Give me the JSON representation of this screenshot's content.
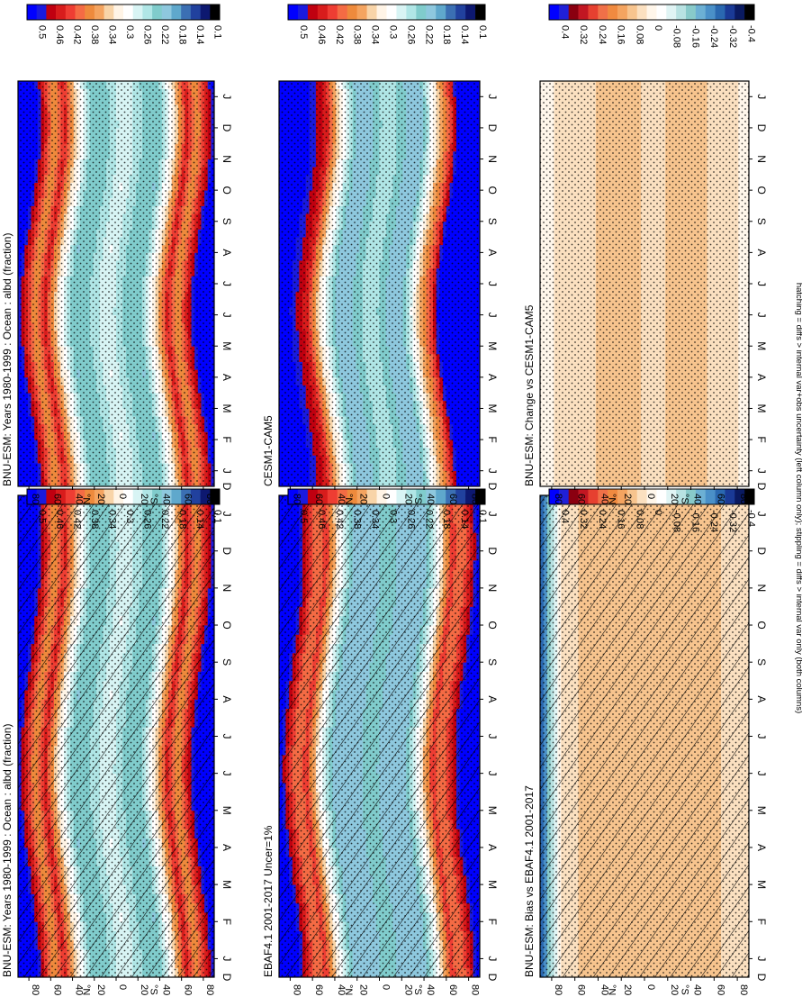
{
  "figure": {
    "footnote": "hatching = diffs > internal var+obs uncertainty (left column only); stippling = diffs > internal var only (both columns)"
  },
  "colors": {
    "abs_palette": [
      "#0000ff",
      "#1a1adf",
      "#c00010",
      "#d81c1c",
      "#ee3d33",
      "#f46b44",
      "#ee8a3c",
      "#f4a460",
      "#f8d4a8",
      "#fff4e6",
      "#ffffff",
      "#d8f4f4",
      "#b0e6e6",
      "#80cccc",
      "#8ec8de",
      "#5fa8cc",
      "#3b6fb3",
      "#21419e",
      "#0d1870",
      "#000000"
    ],
    "diff_palette": [
      "#0000ff",
      "#2020d8",
      "#8a0010",
      "#c21622",
      "#e64030",
      "#f07048",
      "#f08a40",
      "#f4a460",
      "#f7c48e",
      "#fbe0c0",
      "#fff6ea",
      "#ffffff",
      "#e0f4f4",
      "#b8e2e2",
      "#88caca",
      "#6cb0d4",
      "#4a90c8",
      "#2a68b0",
      "#1a3a96",
      "#0a1a60",
      "#000000"
    ]
  },
  "chart_data": [
    {
      "type": "heatmap",
      "title": "BNU-ESM: Years 1980-1999 : Ocean : albd (fraction)",
      "x_ticks": [
        "J",
        "F",
        "M",
        "A",
        "M",
        "J",
        "J",
        "A",
        "S",
        "O",
        "N",
        "D",
        "J"
      ],
      "x_extra_tick": "D",
      "y_ticks": [
        "80",
        "60",
        "40",
        "20",
        "0",
        "20",
        "40",
        "60",
        "80"
      ],
      "y_hemisphere_labels": [
        "°N",
        "°S"
      ],
      "hatching": true,
      "stippling": true,
      "colorbar": {
        "ticks": [
          "0.5",
          "0.46",
          "0.42",
          "0.38",
          "0.34",
          "0.3",
          "0.26",
          "0.22",
          "0.18",
          "0.14",
          "0.1"
        ],
        "range": [
          0.1,
          0.5
        ]
      },
      "field": {
        "lat_nodes": [
          -90,
          -65,
          -56,
          -45,
          -30,
          -15,
          0,
          15,
          30,
          45,
          56,
          65,
          90
        ],
        "values": [
          0.55,
          0.36,
          0.43,
          0.32,
          0.22,
          0.24,
          0.28,
          0.24,
          0.22,
          0.32,
          0.43,
          0.36,
          0.55
        ],
        "seasonal_shift_deg": 9
      }
    },
    {
      "type": "heatmap",
      "title": "BNU-ESM: Years 1980-1999 : Ocean : albd (fraction)",
      "x_ticks": [
        "J",
        "F",
        "M",
        "A",
        "M",
        "J",
        "J",
        "A",
        "S",
        "O",
        "N",
        "D",
        "J"
      ],
      "x_extra_tick": "D",
      "y_ticks": [
        "80",
        "60",
        "40",
        "20",
        "0",
        "20",
        "40",
        "60",
        "80"
      ],
      "y_hemisphere_labels": [
        "°N",
        "°S"
      ],
      "hatching": false,
      "stippling": true,
      "colorbar": {
        "ticks": [
          "0.5",
          "0.46",
          "0.42",
          "0.38",
          "0.34",
          "0.3",
          "0.26",
          "0.22",
          "0.18",
          "0.14",
          "0.1"
        ],
        "range": [
          0.1,
          0.5
        ]
      },
      "field": {
        "lat_nodes": [
          -90,
          -65,
          -56,
          -45,
          -30,
          -15,
          0,
          15,
          30,
          45,
          56,
          65,
          90
        ],
        "values": [
          0.55,
          0.36,
          0.43,
          0.32,
          0.22,
          0.24,
          0.28,
          0.24,
          0.22,
          0.32,
          0.43,
          0.36,
          0.55
        ],
        "seasonal_shift_deg": 9
      }
    },
    {
      "type": "heatmap",
      "title": "EBAF4.1 2001-2017 Uncer=1%",
      "x_ticks": [
        "J",
        "F",
        "M",
        "A",
        "M",
        "J",
        "J",
        "A",
        "S",
        "O",
        "N",
        "D",
        "J"
      ],
      "x_extra_tick": "D",
      "y_ticks": [
        "80",
        "60",
        "40",
        "20",
        "0",
        "20",
        "40",
        "60",
        "80"
      ],
      "y_hemisphere_labels": [
        "°N",
        "°S"
      ],
      "hatching": true,
      "stippling": true,
      "colorbar": {
        "ticks": [
          "0.5",
          "0.46",
          "0.42",
          "0.38",
          "0.34",
          "0.3",
          "0.26",
          "0.22",
          "0.18",
          "0.14",
          "0.1"
        ],
        "range": [
          0.1,
          0.5
        ]
      },
      "field": {
        "lat_nodes": [
          -90,
          -65,
          -56,
          -45,
          -30,
          -15,
          0,
          15,
          30,
          45,
          56,
          65,
          90
        ],
        "values": [
          0.55,
          0.38,
          0.41,
          0.3,
          0.2,
          0.2,
          0.24,
          0.2,
          0.2,
          0.3,
          0.41,
          0.38,
          0.55
        ],
        "seasonal_shift_deg": 9
      }
    },
    {
      "type": "heatmap",
      "title": "CESM1-CAM5",
      "x_ticks": [
        "J",
        "F",
        "M",
        "A",
        "M",
        "J",
        "J",
        "A",
        "S",
        "O",
        "N",
        "D",
        "J"
      ],
      "x_extra_tick": "D",
      "y_ticks": [
        "80",
        "60",
        "40",
        "20",
        "0",
        "20",
        "40",
        "60",
        "80"
      ],
      "y_hemisphere_labels": [
        "°N",
        "°S"
      ],
      "hatching": false,
      "stippling": true,
      "colorbar": {
        "ticks": [
          "0.5",
          "0.46",
          "0.42",
          "0.38",
          "0.34",
          "0.3",
          "0.26",
          "0.22",
          "0.18",
          "0.14",
          "0.1"
        ],
        "range": [
          0.1,
          0.5
        ]
      },
      "field": {
        "lat_nodes": [
          -90,
          -65,
          -56,
          -45,
          -30,
          -15,
          0,
          15,
          30,
          45,
          56,
          65,
          90
        ],
        "values": [
          0.55,
          0.52,
          0.42,
          0.34,
          0.22,
          0.22,
          0.26,
          0.22,
          0.22,
          0.32,
          0.43,
          0.46,
          0.55
        ],
        "seasonal_shift_deg": 9
      }
    },
    {
      "type": "heatmap",
      "title": "BNU-ESM: Bias vs EBAF4.1 2001-2017",
      "x_ticks": [
        "J",
        "F",
        "M",
        "A",
        "M",
        "J",
        "J",
        "A",
        "S",
        "O",
        "N",
        "D",
        "J"
      ],
      "x_extra_tick": "D",
      "y_ticks": [
        "80",
        "60",
        "40",
        "20",
        "0",
        "20",
        "40",
        "60",
        "80"
      ],
      "y_hemisphere_labels": [
        "°N",
        "°S"
      ],
      "hatching": true,
      "stippling": true,
      "colorbar": {
        "ticks": [
          "0.4",
          "0.32",
          "0.24",
          "0.16",
          "0.08",
          "0",
          "-0.08",
          "-0.16",
          "-0.24",
          "-0.32",
          "-0.4"
        ],
        "range": [
          -0.4,
          0.4
        ]
      },
      "field": {
        "lat_nodes": [
          -90,
          -70,
          -50,
          -30,
          -10,
          10,
          30,
          50,
          70,
          90
        ],
        "values": [
          0.02,
          0.05,
          0.08,
          0.06,
          0.06,
          0.07,
          0.08,
          0.06,
          0.05,
          -0.3
        ],
        "seasonal_shift_deg": 0
      }
    },
    {
      "type": "heatmap",
      "title": "BNU-ESM: Change vs CESM1-CAM5",
      "x_ticks": [
        "J",
        "F",
        "M",
        "A",
        "M",
        "J",
        "J",
        "A",
        "S",
        "O",
        "N",
        "D",
        "J"
      ],
      "x_extra_tick": "D",
      "y_ticks": [
        "80",
        "60",
        "40",
        "20",
        "0",
        "20",
        "40",
        "60",
        "80"
      ],
      "y_hemisphere_labels": [
        "°N",
        "°S"
      ],
      "hatching": false,
      "stippling": true,
      "colorbar": {
        "ticks": [
          "0.4",
          "0.32",
          "0.24",
          "0.16",
          "0.08",
          "0",
          "-0.08",
          "-0.16",
          "-0.24",
          "-0.32",
          "-0.4"
        ],
        "range": [
          -0.4,
          0.4
        ]
      },
      "field": {
        "lat_nodes": [
          -90,
          -70,
          -50,
          -30,
          -10,
          10,
          30,
          50,
          70,
          90
        ],
        "values": [
          0.0,
          0.04,
          0.06,
          0.07,
          0.05,
          0.06,
          0.07,
          0.05,
          0.03,
          0.0
        ],
        "seasonal_shift_deg": 0
      }
    }
  ]
}
